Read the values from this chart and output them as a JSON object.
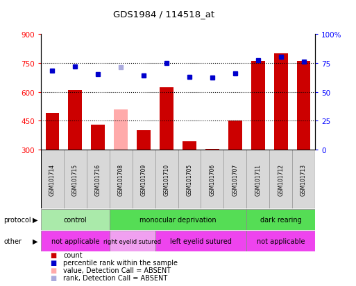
{
  "title": "GDS1984 / 114518_at",
  "samples": [
    "GSM101714",
    "GSM101715",
    "GSM101716",
    "GSM101708",
    "GSM101709",
    "GSM101710",
    "GSM101705",
    "GSM101706",
    "GSM101707",
    "GSM101711",
    "GSM101712",
    "GSM101713"
  ],
  "bar_values": [
    490,
    610,
    430,
    510,
    400,
    625,
    345,
    305,
    450,
    760,
    800,
    760
  ],
  "bar_colors": [
    "#cc0000",
    "#cc0000",
    "#cc0000",
    "#ffaaaa",
    "#cc0000",
    "#cc0000",
    "#cc0000",
    "#cc0000",
    "#cc0000",
    "#cc0000",
    "#cc0000",
    "#cc0000"
  ],
  "dot_values": [
    68,
    72,
    65,
    71,
    64,
    75,
    63,
    62,
    66,
    77,
    80,
    76
  ],
  "dot_colors": [
    "#0000cc",
    "#0000cc",
    "#0000cc",
    "#aaaadd",
    "#0000cc",
    "#0000cc",
    "#0000cc",
    "#0000cc",
    "#0000cc",
    "#0000cc",
    "#0000cc",
    "#0000cc"
  ],
  "ylim_left": [
    300,
    900
  ],
  "ylim_right": [
    0,
    100
  ],
  "yticks_left": [
    300,
    450,
    600,
    750,
    900
  ],
  "yticks_right": [
    0,
    25,
    50,
    75,
    100
  ],
  "yticklabels_right": [
    "0",
    "25",
    "50",
    "75",
    "100%"
  ],
  "hlines": [
    450,
    600,
    750
  ],
  "protocol_groups": [
    {
      "label": "control",
      "start": 0,
      "end": 3,
      "color": "#aaeaaa"
    },
    {
      "label": "monocular deprivation",
      "start": 3,
      "end": 9,
      "color": "#55dd55"
    },
    {
      "label": "dark rearing",
      "start": 9,
      "end": 12,
      "color": "#55dd55"
    }
  ],
  "other_groups": [
    {
      "label": "not applicable",
      "start": 0,
      "end": 3,
      "color": "#ee44ee"
    },
    {
      "label": "right eyelid sutured",
      "start": 3,
      "end": 5,
      "color": "#f0a0f0"
    },
    {
      "label": "left eyelid sutured",
      "start": 5,
      "end": 9,
      "color": "#ee44ee"
    },
    {
      "label": "not applicable",
      "start": 9,
      "end": 12,
      "color": "#ee44ee"
    }
  ],
  "legend_items": [
    {
      "label": "count",
      "color": "#cc0000"
    },
    {
      "label": "percentile rank within the sample",
      "color": "#0000cc"
    },
    {
      "label": "value, Detection Call = ABSENT",
      "color": "#ffaaaa"
    },
    {
      "label": "rank, Detection Call = ABSENT",
      "color": "#aaaadd"
    }
  ],
  "protocol_label": "protocol",
  "other_label": "other",
  "bar_bottom": 300,
  "fig_width": 5.13,
  "fig_height": 4.14,
  "fig_dpi": 100
}
